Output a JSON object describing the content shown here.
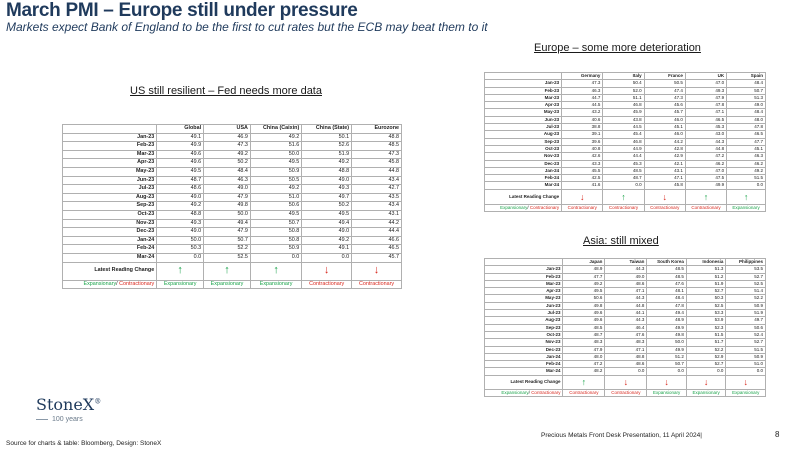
{
  "header": {
    "title": "March PMI – Europe still under pressure",
    "subtitle": "Markets expect Bank of England to be the first to cut rates but the ECB may beat them to it"
  },
  "sections": {
    "us": "US still resilient – Fed needs more data",
    "europe": "Europe – some more deterioration",
    "asia": "Asia: still mixed"
  },
  "colors": {
    "title": "#1f3a5c",
    "expansionary": "#1aa34a",
    "contractionary": "#d8261c"
  },
  "labels": {
    "latest_change": "Latest Reading Change",
    "expansionary": "Expansionary",
    "slash": "/ ",
    "contractionary": "Contractionary"
  },
  "global_table": {
    "columns": [
      "Global",
      "USA",
      "China (Caixin)",
      "China (State)",
      "Eurozone"
    ],
    "rows": [
      {
        "label": "Jan-23",
        "values": [
          "49.1",
          "46.9",
          "49.2",
          "50.1",
          "48.8"
        ]
      },
      {
        "label": "Feb-23",
        "values": [
          "49.9",
          "47.3",
          "51.6",
          "52.6",
          "48.5"
        ]
      },
      {
        "label": "Mar-23",
        "values": [
          "49.6",
          "49.2",
          "50.0",
          "51.9",
          "47.3"
        ]
      },
      {
        "label": "Apr-23",
        "values": [
          "49.6",
          "50.2",
          "49.5",
          "49.2",
          "45.8"
        ]
      },
      {
        "label": "May-23",
        "values": [
          "49.5",
          "48.4",
          "50.9",
          "48.8",
          "44.8"
        ]
      },
      {
        "label": "Jun-23",
        "values": [
          "48.7",
          "46.3",
          "50.5",
          "49.0",
          "43.4"
        ]
      },
      {
        "label": "Jul-23",
        "values": [
          "48.6",
          "49.0",
          "49.2",
          "49.3",
          "42.7"
        ]
      },
      {
        "label": "Aug-23",
        "values": [
          "49.0",
          "47.9",
          "51.0",
          "49.7",
          "43.5"
        ]
      },
      {
        "label": "Sep-23",
        "values": [
          "49.2",
          "49.8",
          "50.6",
          "50.2",
          "43.4"
        ]
      },
      {
        "label": "Oct-23",
        "values": [
          "48.8",
          "50.0",
          "49.5",
          "49.5",
          "43.1"
        ]
      },
      {
        "label": "Nov-23",
        "values": [
          "49.3",
          "49.4",
          "50.7",
          "49.4",
          "44.2"
        ]
      },
      {
        "label": "Dec-23",
        "values": [
          "49.0",
          "47.9",
          "50.8",
          "49.0",
          "44.4"
        ]
      },
      {
        "label": "Jan-24",
        "values": [
          "50.0",
          "50.7",
          "50.8",
          "49.2",
          "46.6"
        ]
      },
      {
        "label": "Feb-24",
        "values": [
          "50.3",
          "52.2",
          "50.9",
          "49.1",
          "46.5"
        ]
      },
      {
        "label": "Mar-24",
        "values": [
          "0.0",
          "52.5",
          "0.0",
          "0.0",
          "45.7"
        ]
      }
    ],
    "arrows": [
      "up",
      "up",
      "up",
      "down",
      "down"
    ],
    "trend": [
      "Expansionary",
      "Expansionary",
      "Expansionary",
      "Contractionary",
      "Contractionary"
    ]
  },
  "europe_table": {
    "columns": [
      "Germany",
      "Italy",
      "France",
      "UK",
      "Spain"
    ],
    "rows": [
      {
        "label": "Jan-23",
        "values": [
          "47.3",
          "50.4",
          "50.5",
          "47.0",
          "48.4"
        ]
      },
      {
        "label": "Feb-23",
        "values": [
          "46.3",
          "52.0",
          "47.4",
          "49.3",
          "50.7"
        ]
      },
      {
        "label": "Mar-23",
        "values": [
          "44.7",
          "51.1",
          "47.3",
          "47.9",
          "51.3"
        ]
      },
      {
        "label": "Apr-23",
        "values": [
          "44.5",
          "46.8",
          "45.6",
          "47.8",
          "49.0"
        ]
      },
      {
        "label": "May-23",
        "values": [
          "43.2",
          "45.9",
          "45.7",
          "47.1",
          "48.4"
        ]
      },
      {
        "label": "Jun-23",
        "values": [
          "40.6",
          "43.8",
          "46.0",
          "46.5",
          "48.0"
        ]
      },
      {
        "label": "Jul-23",
        "values": [
          "38.8",
          "44.5",
          "45.1",
          "45.3",
          "47.8"
        ]
      },
      {
        "label": "Aug-23",
        "values": [
          "39.1",
          "45.4",
          "46.0",
          "43.0",
          "46.5"
        ]
      },
      {
        "label": "Sep-23",
        "values": [
          "39.6",
          "46.8",
          "44.2",
          "44.3",
          "47.7"
        ]
      },
      {
        "label": "Oct-23",
        "values": [
          "40.8",
          "44.9",
          "42.8",
          "44.8",
          "45.1"
        ]
      },
      {
        "label": "Nov-23",
        "values": [
          "42.6",
          "44.4",
          "42.9",
          "47.2",
          "46.3"
        ]
      },
      {
        "label": "Dec-23",
        "values": [
          "43.3",
          "45.3",
          "42.1",
          "46.2",
          "46.2"
        ]
      },
      {
        "label": "Jan-24",
        "values": [
          "45.5",
          "48.5",
          "43.1",
          "47.0",
          "49.2"
        ]
      },
      {
        "label": "Feb-24",
        "values": [
          "42.5",
          "48.7",
          "47.1",
          "47.5",
          "51.5"
        ]
      },
      {
        "label": "Mar-24",
        "values": [
          "41.6",
          "0.0",
          "45.8",
          "49.9",
          "0.0"
        ]
      }
    ],
    "arrows": [
      "down",
      "up",
      "down",
      "up",
      "up"
    ],
    "trend": [
      "Contractionary",
      "Contractionary",
      "Contractionary",
      "Contractionary",
      "Expansionary"
    ]
  },
  "asia_table": {
    "columns": [
      "Japan",
      "Taiwan",
      "South Korea",
      "Indonesia",
      "Philippines"
    ],
    "rows": [
      {
        "label": "Jan-23",
        "values": [
          "48.9",
          "44.3",
          "48.5",
          "51.3",
          "53.5"
        ]
      },
      {
        "label": "Feb-23",
        "values": [
          "47.7",
          "49.0",
          "48.5",
          "51.2",
          "52.7"
        ]
      },
      {
        "label": "Mar-23",
        "values": [
          "49.2",
          "48.6",
          "47.6",
          "51.9",
          "52.5"
        ]
      },
      {
        "label": "Apr-23",
        "values": [
          "49.5",
          "47.1",
          "48.1",
          "52.7",
          "51.4"
        ]
      },
      {
        "label": "May-23",
        "values": [
          "50.6",
          "44.3",
          "48.4",
          "50.3",
          "52.2"
        ]
      },
      {
        "label": "Jun-23",
        "values": [
          "49.8",
          "44.8",
          "47.8",
          "52.5",
          "50.9"
        ]
      },
      {
        "label": "Jul-23",
        "values": [
          "49.6",
          "44.1",
          "49.4",
          "53.3",
          "51.9"
        ]
      },
      {
        "label": "Aug-23",
        "values": [
          "49.6",
          "44.3",
          "48.9",
          "53.9",
          "49.7"
        ]
      },
      {
        "label": "Sep-23",
        "values": [
          "48.5",
          "46.4",
          "49.9",
          "52.3",
          "50.6"
        ]
      },
      {
        "label": "Oct-23",
        "values": [
          "48.7",
          "47.6",
          "49.8",
          "51.5",
          "52.4"
        ]
      },
      {
        "label": "Nov-23",
        "values": [
          "48.3",
          "48.3",
          "50.0",
          "51.7",
          "52.7"
        ]
      },
      {
        "label": "Dec-23",
        "values": [
          "47.9",
          "47.1",
          "49.9",
          "52.2",
          "51.5"
        ]
      },
      {
        "label": "Jan-24",
        "values": [
          "48.0",
          "48.8",
          "51.2",
          "52.9",
          "50.9"
        ]
      },
      {
        "label": "Feb-24",
        "values": [
          "47.2",
          "48.6",
          "50.7",
          "52.7",
          "51.0"
        ]
      },
      {
        "label": "Mar-24",
        "values": [
          "48.2",
          "0.0",
          "0.0",
          "0.0",
          "0.0"
        ]
      }
    ],
    "arrows": [
      "up",
      "down",
      "down",
      "down",
      "down"
    ],
    "trend": [
      "Contractionary",
      "Contractionary",
      "Expansionary",
      "Expansionary",
      "Expansionary"
    ]
  },
  "logo": {
    "name": "StoneX",
    "trademark": "®",
    "sub": "100 years"
  },
  "footer": {
    "source": "Source for charts & table: Bloomberg, Design: StoneX",
    "presentation": "Precious Metals Front Desk Presentation, 11 April 2024|",
    "page": "8"
  }
}
